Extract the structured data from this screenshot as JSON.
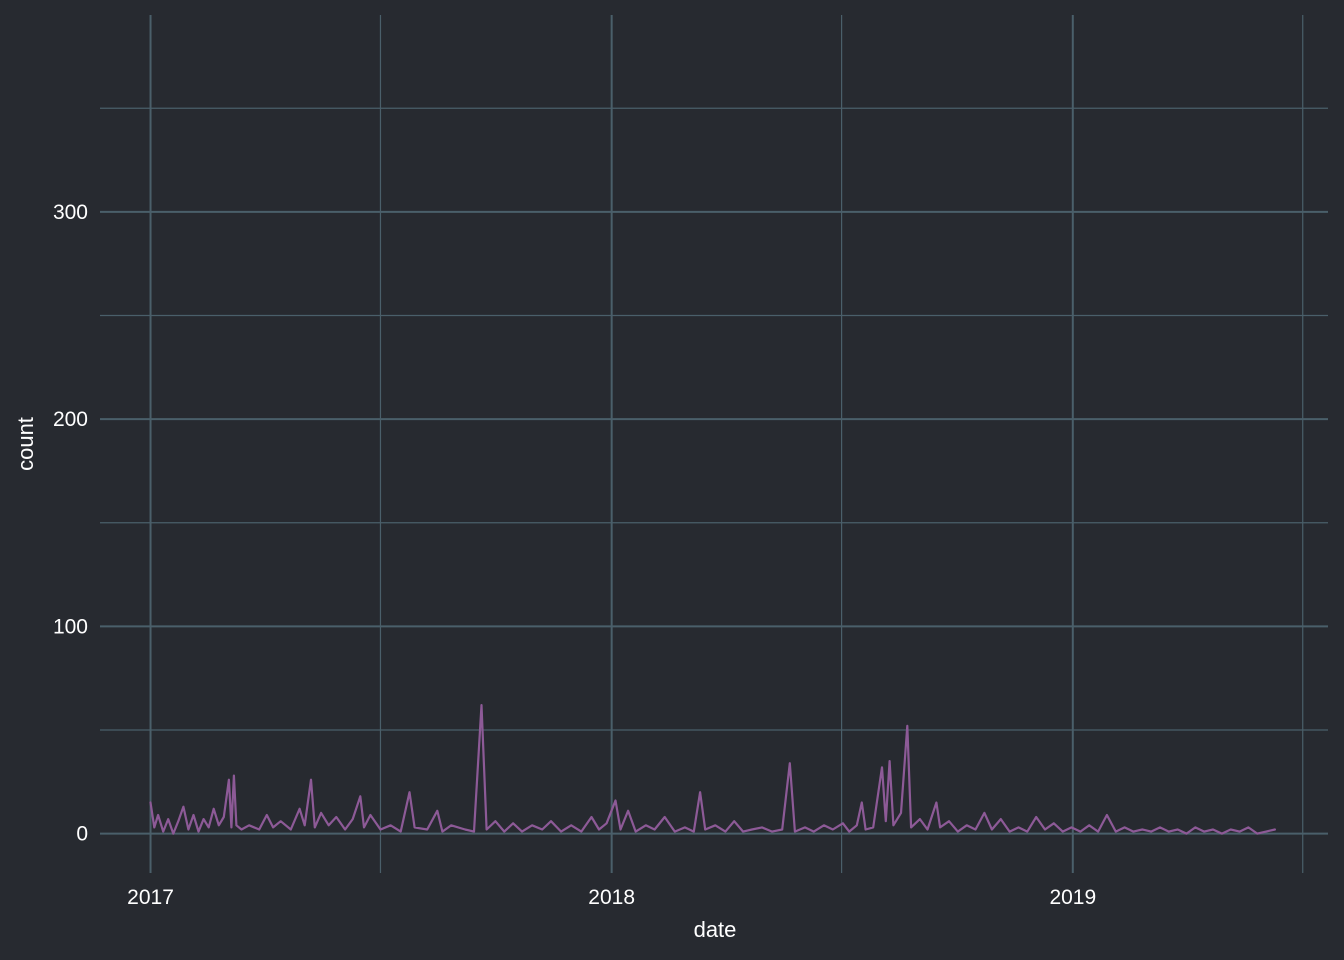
{
  "chart_data": {
    "type": "line",
    "xlabel": "date",
    "ylabel": "count",
    "xlim": [
      "2016-11-22",
      "2019-07-22"
    ],
    "ylim": [
      -19,
      395
    ],
    "x_ticks": [
      "2017",
      "2018",
      "2019"
    ],
    "y_ticks": [
      "0",
      "100",
      "200",
      "300"
    ],
    "grid": true,
    "colors": {
      "background": "#272a30",
      "grid": "#4a5f6a",
      "line": "#8d5a97",
      "text": "#ffffff"
    },
    "series": [
      {
        "color": "#8d5a97",
        "points": [
          [
            "2017-01-01",
            15
          ],
          [
            "2017-01-04",
            3
          ],
          [
            "2017-01-07",
            9
          ],
          [
            "2017-01-11",
            1
          ],
          [
            "2017-01-15",
            7
          ],
          [
            "2017-01-19",
            0
          ],
          [
            "2017-01-23",
            6
          ],
          [
            "2017-01-27",
            13
          ],
          [
            "2017-01-31",
            2
          ],
          [
            "2017-02-04",
            9
          ],
          [
            "2017-02-08",
            1
          ],
          [
            "2017-02-12",
            7
          ],
          [
            "2017-02-16",
            3
          ],
          [
            "2017-02-20",
            12
          ],
          [
            "2017-02-24",
            4
          ],
          [
            "2017-02-28",
            8
          ],
          [
            "2017-03-04",
            26
          ],
          [
            "2017-03-06",
            3
          ],
          [
            "2017-03-08",
            28
          ],
          [
            "2017-03-10",
            4
          ],
          [
            "2017-03-14",
            2
          ],
          [
            "2017-03-20",
            4
          ],
          [
            "2017-03-28",
            2
          ],
          [
            "2017-04-03",
            9
          ],
          [
            "2017-04-08",
            3
          ],
          [
            "2017-04-14",
            6
          ],
          [
            "2017-04-22",
            2
          ],
          [
            "2017-04-29",
            12
          ],
          [
            "2017-05-03",
            4
          ],
          [
            "2017-05-08",
            26
          ],
          [
            "2017-05-11",
            3
          ],
          [
            "2017-05-16",
            10
          ],
          [
            "2017-05-22",
            4
          ],
          [
            "2017-05-28",
            8
          ],
          [
            "2017-06-04",
            2
          ],
          [
            "2017-06-10",
            7
          ],
          [
            "2017-06-16",
            18
          ],
          [
            "2017-06-19",
            3
          ],
          [
            "2017-06-24",
            9
          ],
          [
            "2017-07-02",
            2
          ],
          [
            "2017-07-10",
            4
          ],
          [
            "2017-07-18",
            1
          ],
          [
            "2017-07-25",
            20
          ],
          [
            "2017-07-29",
            3
          ],
          [
            "2017-08-08",
            2
          ],
          [
            "2017-08-16",
            11
          ],
          [
            "2017-08-20",
            1
          ],
          [
            "2017-08-27",
            4
          ],
          [
            "2017-09-07",
            2
          ],
          [
            "2017-09-14",
            1
          ],
          [
            "2017-09-20",
            62
          ],
          [
            "2017-09-24",
            2
          ],
          [
            "2017-10-01",
            6
          ],
          [
            "2017-10-08",
            1
          ],
          [
            "2017-10-15",
            5
          ],
          [
            "2017-10-22",
            1
          ],
          [
            "2017-10-30",
            4
          ],
          [
            "2017-11-07",
            2
          ],
          [
            "2017-11-14",
            6
          ],
          [
            "2017-11-22",
            1
          ],
          [
            "2017-11-30",
            4
          ],
          [
            "2017-12-08",
            1
          ],
          [
            "2017-12-16",
            8
          ],
          [
            "2017-12-22",
            2
          ],
          [
            "2017-12-28",
            5
          ],
          [
            "2018-01-04",
            16
          ],
          [
            "2018-01-08",
            2
          ],
          [
            "2018-01-14",
            11
          ],
          [
            "2018-01-20",
            1
          ],
          [
            "2018-01-28",
            4
          ],
          [
            "2018-02-04",
            2
          ],
          [
            "2018-02-12",
            8
          ],
          [
            "2018-02-20",
            1
          ],
          [
            "2018-02-28",
            3
          ],
          [
            "2018-03-07",
            1
          ],
          [
            "2018-03-12",
            20
          ],
          [
            "2018-03-16",
            2
          ],
          [
            "2018-03-24",
            4
          ],
          [
            "2018-04-01",
            1
          ],
          [
            "2018-04-08",
            6
          ],
          [
            "2018-04-15",
            1
          ],
          [
            "2018-04-22",
            2
          ],
          [
            "2018-04-30",
            3
          ],
          [
            "2018-05-08",
            1
          ],
          [
            "2018-05-16",
            2
          ],
          [
            "2018-05-22",
            34
          ],
          [
            "2018-05-26",
            1
          ],
          [
            "2018-06-03",
            3
          ],
          [
            "2018-06-10",
            1
          ],
          [
            "2018-06-18",
            4
          ],
          [
            "2018-06-25",
            2
          ],
          [
            "2018-07-03",
            5
          ],
          [
            "2018-07-08",
            1
          ],
          [
            "2018-07-14",
            4
          ],
          [
            "2018-07-18",
            15
          ],
          [
            "2018-07-21",
            2
          ],
          [
            "2018-07-27",
            3
          ],
          [
            "2018-08-03",
            32
          ],
          [
            "2018-08-06",
            6
          ],
          [
            "2018-08-09",
            35
          ],
          [
            "2018-08-12",
            4
          ],
          [
            "2018-08-18",
            10
          ],
          [
            "2018-08-23",
            52
          ],
          [
            "2018-08-26",
            3
          ],
          [
            "2018-09-02",
            7
          ],
          [
            "2018-09-08",
            2
          ],
          [
            "2018-09-15",
            15
          ],
          [
            "2018-09-18",
            3
          ],
          [
            "2018-09-25",
            6
          ],
          [
            "2018-10-02",
            1
          ],
          [
            "2018-10-09",
            4
          ],
          [
            "2018-10-16",
            2
          ],
          [
            "2018-10-23",
            10
          ],
          [
            "2018-10-29",
            2
          ],
          [
            "2018-11-05",
            7
          ],
          [
            "2018-11-12",
            1
          ],
          [
            "2018-11-19",
            3
          ],
          [
            "2018-11-26",
            1
          ],
          [
            "2018-12-03",
            8
          ],
          [
            "2018-12-10",
            2
          ],
          [
            "2018-12-17",
            5
          ],
          [
            "2018-12-24",
            1
          ],
          [
            "2018-12-31",
            3
          ],
          [
            "2019-01-07",
            1
          ],
          [
            "2019-01-14",
            4
          ],
          [
            "2019-01-21",
            1
          ],
          [
            "2019-01-28",
            9
          ],
          [
            "2019-02-04",
            1
          ],
          [
            "2019-02-11",
            3
          ],
          [
            "2019-02-18",
            1
          ],
          [
            "2019-02-25",
            2
          ],
          [
            "2019-03-04",
            1
          ],
          [
            "2019-03-11",
            3
          ],
          [
            "2019-03-18",
            1
          ],
          [
            "2019-03-25",
            2
          ],
          [
            "2019-04-01",
            0
          ],
          [
            "2019-04-08",
            3
          ],
          [
            "2019-04-15",
            1
          ],
          [
            "2019-04-22",
            2
          ],
          [
            "2019-04-29",
            0
          ],
          [
            "2019-05-06",
            2
          ],
          [
            "2019-05-13",
            1
          ],
          [
            "2019-05-20",
            3
          ],
          [
            "2019-05-27",
            0
          ],
          [
            "2019-06-03",
            1
          ],
          [
            "2019-06-10",
            2
          ]
        ]
      }
    ]
  }
}
